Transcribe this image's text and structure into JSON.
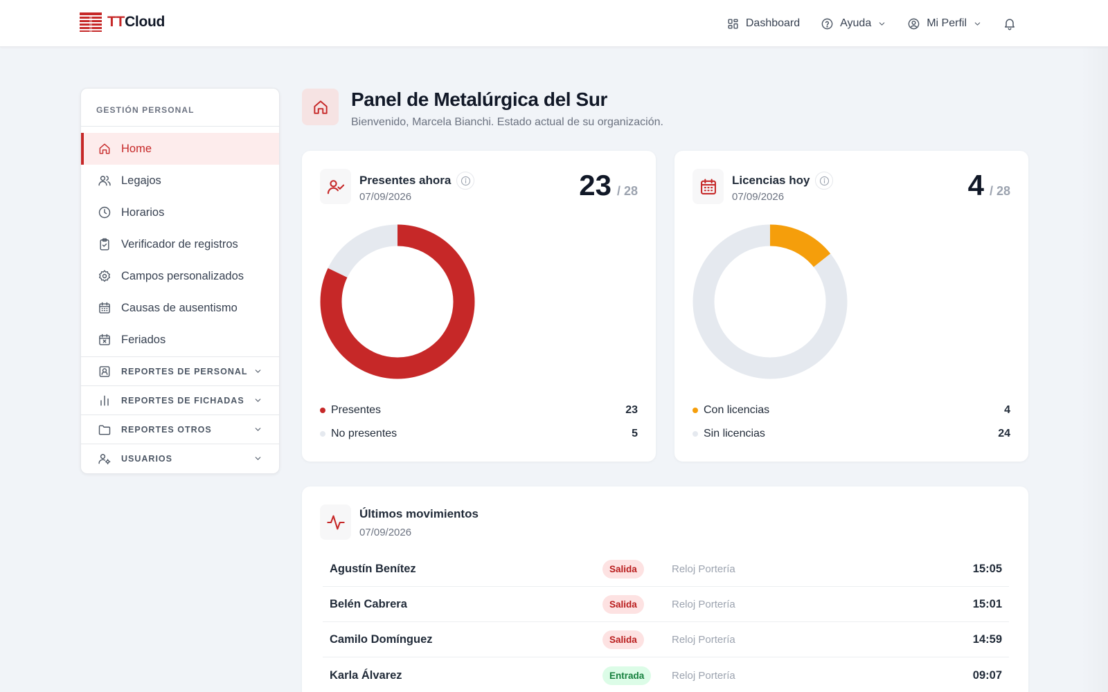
{
  "brand": {
    "prefix": "TT",
    "suffix": "Cloud",
    "color": "#c62828"
  },
  "topnav": {
    "dashboard": "Dashboard",
    "help": "Ayuda",
    "profile": "Mi Perfil"
  },
  "sidebar": {
    "header": "GESTIÓN PERSONAL",
    "items": [
      {
        "label": "Home",
        "icon": "home-icon"
      },
      {
        "label": "Legajos",
        "icon": "users-icon"
      },
      {
        "label": "Horarios",
        "icon": "clock-icon"
      },
      {
        "label": "Verificador de registros",
        "icon": "clipboard-check-icon"
      },
      {
        "label": "Campos personalizados",
        "icon": "gear-icon"
      },
      {
        "label": "Causas de ausentismo",
        "icon": "calendar-icon"
      },
      {
        "label": "Feriados",
        "icon": "calendar-x-icon"
      }
    ],
    "groups": [
      {
        "label": "REPORTES DE PERSONAL",
        "icon": "id-card-icon"
      },
      {
        "label": "REPORTES DE FICHADAS",
        "icon": "bar-chart-icon"
      },
      {
        "label": "REPORTES OTROS",
        "icon": "folder-icon"
      },
      {
        "label": "USUARIOS",
        "icon": "user-gear-icon"
      }
    ]
  },
  "page": {
    "title": "Panel de Metalúrgica del Sur",
    "subtitle": "Bienvenido, Marcela Bianchi. Estado actual de su organización."
  },
  "presentes": {
    "title": "Presentes ahora",
    "date": "07/09/2026",
    "count": "23",
    "total": "/ 28",
    "legend": [
      {
        "label": "Presentes",
        "value": "23",
        "color": "#c62828"
      },
      {
        "label": "No presentes",
        "value": "5",
        "color": "#e5e9ef"
      }
    ]
  },
  "licencias": {
    "title": "Licencias hoy",
    "date": "07/09/2026",
    "count": "4",
    "total": "/ 28",
    "legend": [
      {
        "label": "Con licencias",
        "value": "4",
        "color": "#f59e0b"
      },
      {
        "label": "Sin licencias",
        "value": "24",
        "color": "#e5e9ef"
      }
    ]
  },
  "movimientos": {
    "title": "Últimos movimientos",
    "date": "07/09/2026",
    "rows": [
      {
        "name": "Agustín Benítez",
        "type": "Salida",
        "source": "Reloj Portería",
        "time": "15:05"
      },
      {
        "name": "Belén Cabrera",
        "type": "Salida",
        "source": "Reloj Portería",
        "time": "15:01"
      },
      {
        "name": "Camilo Domínguez",
        "type": "Salida",
        "source": "Reloj Portería",
        "time": "14:59"
      },
      {
        "name": "Karla Álvarez",
        "type": "Entrada",
        "source": "Reloj Portería",
        "time": "09:07"
      }
    ]
  }
}
